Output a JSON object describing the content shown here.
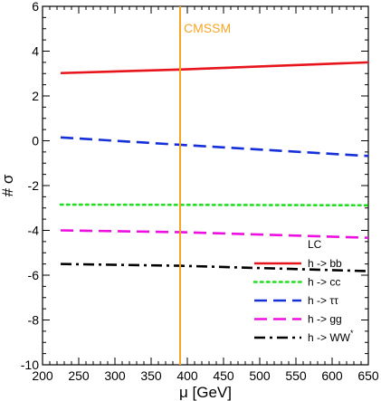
{
  "chart_data": {
    "type": "line",
    "xlabel": "μ [GeV]",
    "ylabel": "# σ",
    "xlim": [
      200,
      650
    ],
    "ylim": [
      -10,
      6
    ],
    "x_ticks": [
      200,
      250,
      300,
      350,
      400,
      450,
      500,
      550,
      600,
      650
    ],
    "y_ticks": [
      -10,
      -8,
      -6,
      -4,
      -2,
      0,
      2,
      4,
      6
    ],
    "grid": false,
    "legend": {
      "title": "LC",
      "placement": "bottom-right"
    },
    "annotation": {
      "label": "CMSSM",
      "x": 390,
      "color": "#f5a623"
    },
    "series": [
      {
        "name": "h -> bb",
        "color": "#e8141b",
        "style": "solid",
        "x": [
          225,
          390,
          650
        ],
        "y": [
          3.02,
          3.18,
          3.5
        ]
      },
      {
        "name": "h -> cc",
        "color": "#22dd22",
        "style": "dotted",
        "x": [
          225,
          390,
          650
        ],
        "y": [
          -2.85,
          -2.86,
          -2.88
        ]
      },
      {
        "name": "h -> ττ",
        "color": "#1530d8",
        "style": "dashed",
        "x": [
          225,
          390,
          650
        ],
        "y": [
          0.15,
          -0.18,
          -0.68
        ]
      },
      {
        "name": "h -> gg",
        "color": "#ee10e0",
        "style": "dashed",
        "x": [
          225,
          390,
          650
        ],
        "y": [
          -4.0,
          -4.08,
          -4.33
        ]
      },
      {
        "name": "h -> WW",
        "name_superscript": "*",
        "color": "#000000",
        "style": "dashdot",
        "x": [
          225,
          390,
          650
        ],
        "y": [
          -5.5,
          -5.58,
          -5.82
        ]
      }
    ]
  }
}
